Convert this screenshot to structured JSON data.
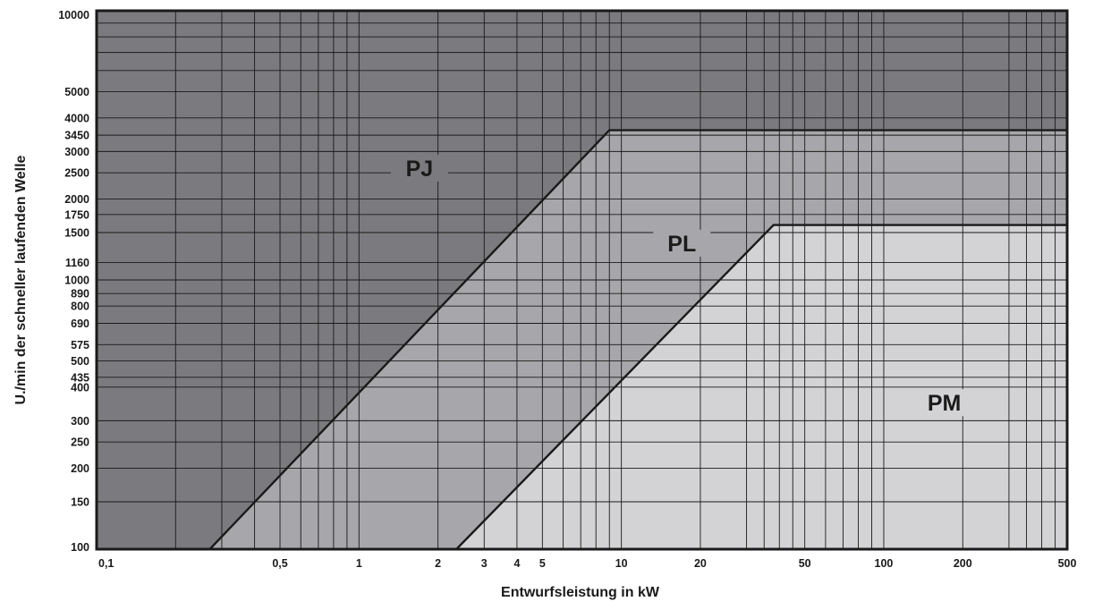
{
  "chart_data": {
    "type": "area",
    "title": "",
    "xlabel": "Entwurfsleistung in kW",
    "ylabel": "U./min der schneller laufenden Welle",
    "x_scale": "log",
    "y_scale": "log",
    "xlim": [
      0.1,
      500
    ],
    "ylim": [
      100,
      10000
    ],
    "grid": true,
    "x_ticks": [
      {
        "value": 0.1,
        "label": "0,1"
      },
      {
        "value": 0.5,
        "label": "0,5"
      },
      {
        "value": 1,
        "label": "1"
      },
      {
        "value": 2,
        "label": "2"
      },
      {
        "value": 3,
        "label": "3"
      },
      {
        "value": 4,
        "label": "4"
      },
      {
        "value": 5,
        "label": "5"
      },
      {
        "value": 10,
        "label": "10"
      },
      {
        "value": 20,
        "label": "20"
      },
      {
        "value": 50,
        "label": "50"
      },
      {
        "value": 100,
        "label": "100"
      },
      {
        "value": 200,
        "label": "200"
      },
      {
        "value": 500,
        "label": "500"
      }
    ],
    "y_ticks": [
      {
        "value": 100,
        "label": "100"
      },
      {
        "value": 150,
        "label": "150"
      },
      {
        "value": 200,
        "label": "200"
      },
      {
        "value": 250,
        "label": "250"
      },
      {
        "value": 300,
        "label": "300"
      },
      {
        "value": 400,
        "label": "400"
      },
      {
        "value": 435,
        "label": "435"
      },
      {
        "value": 500,
        "label": "500"
      },
      {
        "value": 575,
        "label": "575"
      },
      {
        "value": 690,
        "label": "690"
      },
      {
        "value": 800,
        "label": "800"
      },
      {
        "value": 890,
        "label": "890"
      },
      {
        "value": 1000,
        "label": "1000"
      },
      {
        "value": 1160,
        "label": "1160"
      },
      {
        "value": 1500,
        "label": "1500"
      },
      {
        "value": 1750,
        "label": "1750"
      },
      {
        "value": 2000,
        "label": "2000"
      },
      {
        "value": 2500,
        "label": "2500"
      },
      {
        "value": 3000,
        "label": "3000"
      },
      {
        "value": 3450,
        "label": "3450"
      },
      {
        "value": 4000,
        "label": "4000"
      },
      {
        "value": 5000,
        "label": "5000"
      },
      {
        "value": 10000,
        "label": "10000"
      }
    ],
    "regions": [
      {
        "name": "PJ",
        "color": "#7b7b7f",
        "label_at": [
          1.7,
          2600
        ]
      },
      {
        "name": "PL",
        "color": "#a7a7ab",
        "label_at": [
          17,
          1370
        ]
      },
      {
        "name": "PM",
        "color": "#d3d3d5",
        "label_at": [
          170,
          350
        ]
      }
    ],
    "boundaries": [
      {
        "name": "PJ/PL",
        "points": [
          [
            0.27,
            100
          ],
          [
            9,
            3600
          ],
          [
            500,
            3600
          ]
        ]
      },
      {
        "name": "PL/PM",
        "points": [
          [
            2.35,
            100
          ],
          [
            38,
            1600
          ],
          [
            500,
            1600
          ]
        ]
      }
    ]
  }
}
